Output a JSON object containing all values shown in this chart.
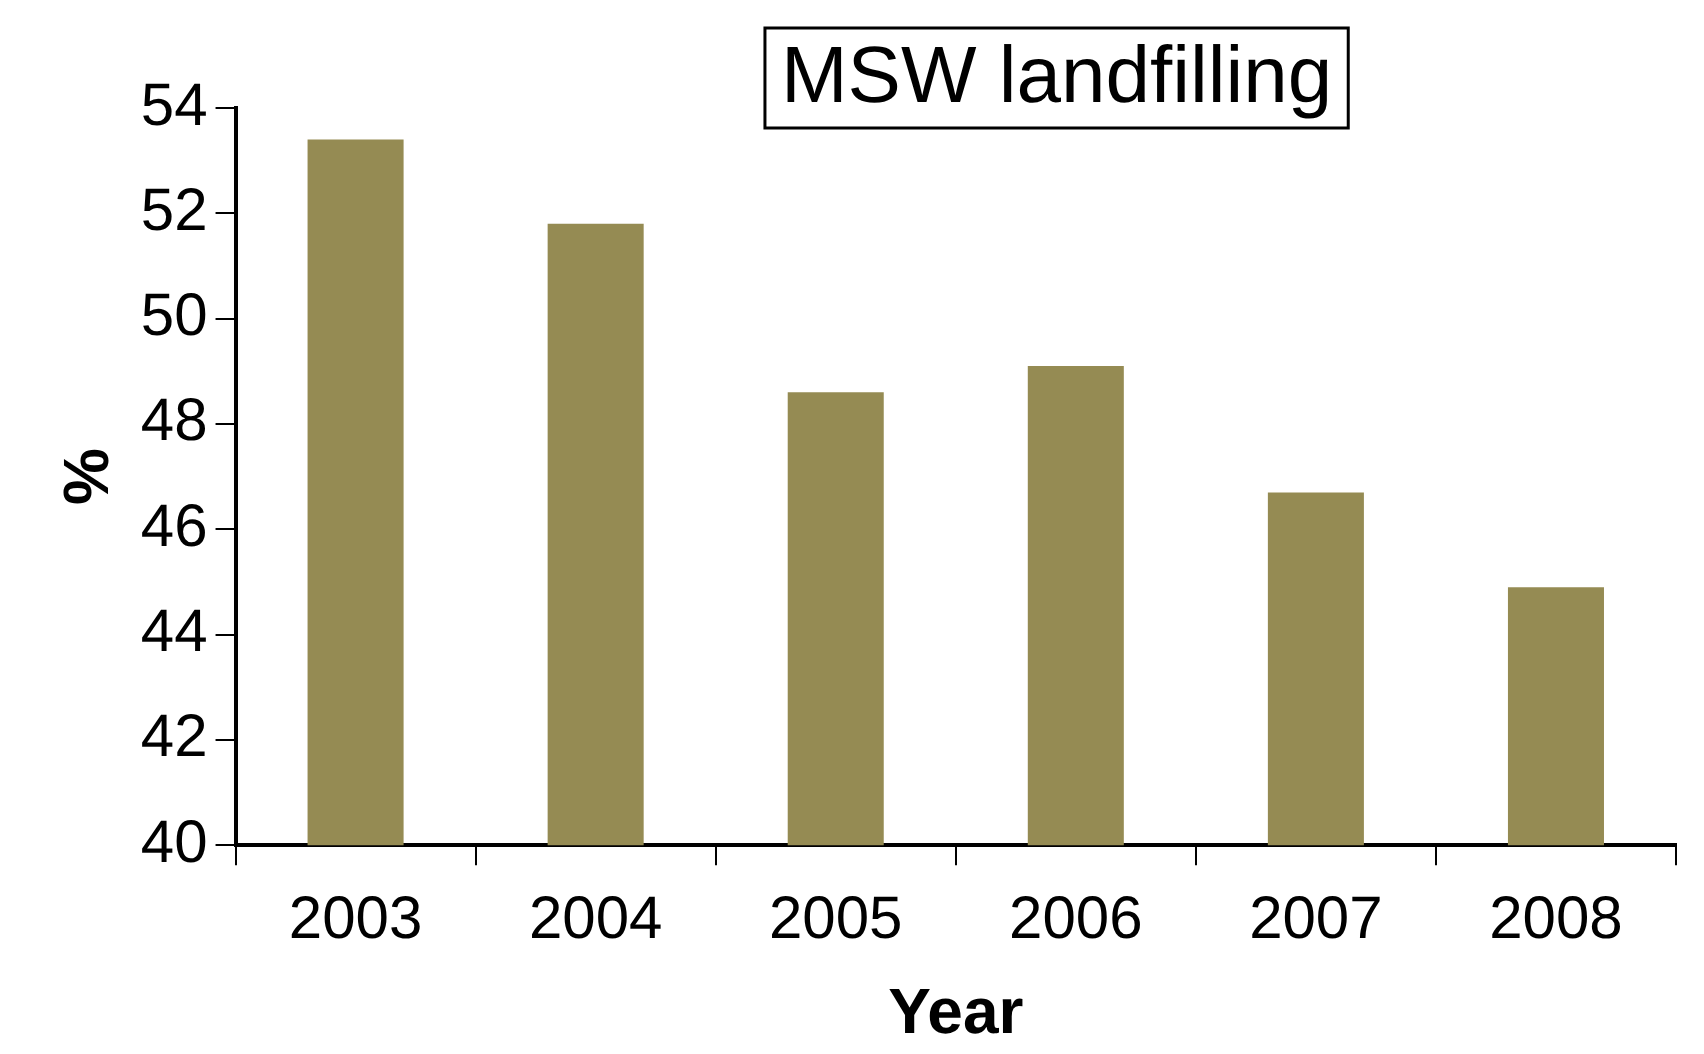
{
  "chart_data": {
    "type": "bar",
    "title": "MSW landfilling",
    "xlabel": "Year",
    "ylabel": "%",
    "categories": [
      "2003",
      "2004",
      "2005",
      "2006",
      "2007",
      "2008"
    ],
    "values": [
      53.4,
      51.8,
      48.6,
      49.1,
      46.7,
      44.9
    ],
    "color": "#958b53",
    "ylim": [
      40,
      54
    ],
    "yticks": [
      40,
      42,
      44,
      46,
      48,
      50,
      52,
      54
    ],
    "grid": false,
    "legend": false
  }
}
